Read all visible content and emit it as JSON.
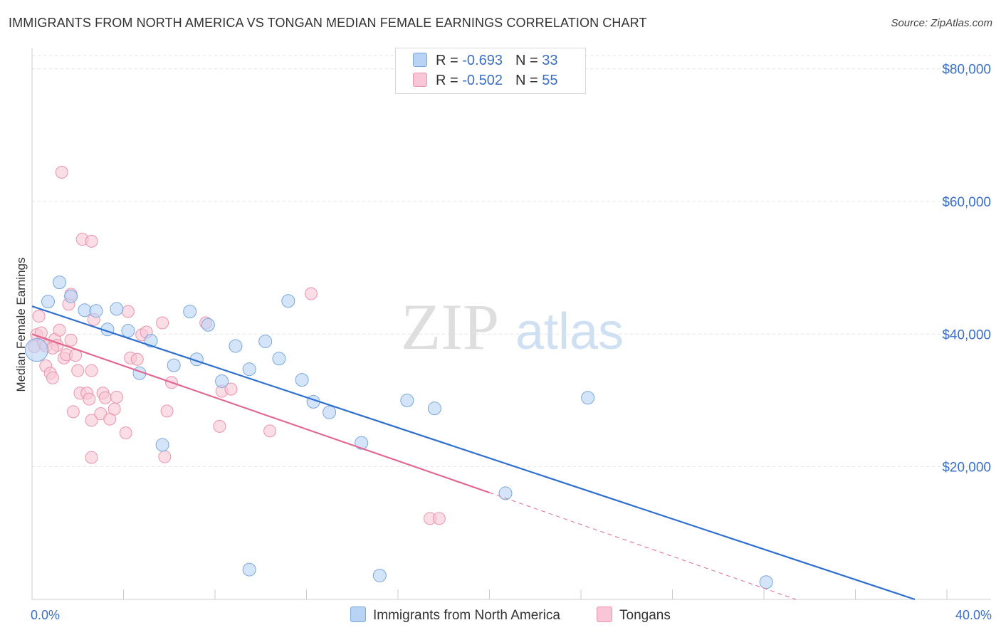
{
  "title": "IMMIGRANTS FROM NORTH AMERICA VS TONGAN MEDIAN FEMALE EARNINGS CORRELATION CHART",
  "source": "Source: ZipAtlas.com",
  "watermark": {
    "zip": "ZIP",
    "atlas": "atlas"
  },
  "legend_top": [
    {
      "r_label": "R = ",
      "r_value": "-0.693",
      "n_label": "N = ",
      "n_value": "33"
    },
    {
      "r_label": "R = ",
      "r_value": "-0.502",
      "n_label": "N = ",
      "n_value": "55"
    }
  ],
  "colors": {
    "blue_fill": "#b9d3f5",
    "blue_stroke": "#7aa6dd",
    "blue_line": "#2e6fd0",
    "pink_fill": "#f8c6d6",
    "pink_stroke": "#ec93b0",
    "pink_line": "#e26891",
    "axis_text": "#3a6fc4",
    "grid": "#e4e4e4"
  },
  "chart_data": {
    "type": "scatter",
    "title": "IMMIGRANTS FROM NORTH AMERICA VS TONGAN MEDIAN FEMALE EARNINGS CORRELATION CHART",
    "xlabel": "",
    "ylabel": "Median Female Earnings",
    "xlim": [
      0,
      40
    ],
    "ylim": [
      0,
      82000
    ],
    "x_tick_labels": [
      "0.0%",
      "40.0%"
    ],
    "y_ticks": [
      20000,
      40000,
      60000,
      80000
    ],
    "y_tick_labels": [
      "$20,000",
      "$40,000",
      "$60,000",
      "$80,000"
    ],
    "grid": true,
    "legend_position": "bottom",
    "series": [
      {
        "name": "Immigrants from North America",
        "color": "#b9d3f5",
        "trend": {
          "x": [
            0,
            38.6
          ],
          "y": [
            44200,
            0
          ],
          "dashed_after_x": null
        },
        "points": [
          {
            "x": 0.2,
            "y": 37600
          },
          {
            "x": 0.7,
            "y": 44900
          },
          {
            "x": 1.2,
            "y": 47800
          },
          {
            "x": 1.7,
            "y": 45700
          },
          {
            "x": 2.3,
            "y": 43600
          },
          {
            "x": 2.8,
            "y": 43500
          },
          {
            "x": 3.3,
            "y": 40700
          },
          {
            "x": 3.7,
            "y": 43800
          },
          {
            "x": 4.2,
            "y": 40500
          },
          {
            "x": 4.7,
            "y": 34100
          },
          {
            "x": 5.2,
            "y": 39000
          },
          {
            "x": 5.7,
            "y": 23300
          },
          {
            "x": 6.2,
            "y": 35300
          },
          {
            "x": 6.9,
            "y": 43400
          },
          {
            "x": 7.2,
            "y": 36200
          },
          {
            "x": 7.7,
            "y": 41400
          },
          {
            "x": 8.3,
            "y": 32900
          },
          {
            "x": 8.9,
            "y": 38200
          },
          {
            "x": 9.5,
            "y": 34700
          },
          {
            "x": 9.5,
            "y": 4500
          },
          {
            "x": 10.2,
            "y": 38900
          },
          {
            "x": 10.8,
            "y": 36300
          },
          {
            "x": 11.2,
            "y": 45000
          },
          {
            "x": 11.8,
            "y": 33100
          },
          {
            "x": 12.3,
            "y": 29800
          },
          {
            "x": 13.0,
            "y": 28200
          },
          {
            "x": 14.4,
            "y": 23600
          },
          {
            "x": 15.2,
            "y": 3600
          },
          {
            "x": 16.4,
            "y": 30000
          },
          {
            "x": 17.6,
            "y": 28800
          },
          {
            "x": 20.7,
            "y": 16000
          },
          {
            "x": 24.3,
            "y": 30400
          },
          {
            "x": 32.1,
            "y": 2600
          }
        ]
      },
      {
        "name": "Tongans",
        "color": "#f8c6d6",
        "trend": {
          "x": [
            0,
            20
          ],
          "y": [
            40000,
            16100
          ],
          "dashed_after_x": 20,
          "dash_to": [
            33.4,
            0
          ]
        },
        "points": [
          {
            "x": 0.1,
            "y": 38100
          },
          {
            "x": 0.2,
            "y": 39900
          },
          {
            "x": 0.3,
            "y": 42700
          },
          {
            "x": 0.4,
            "y": 40200
          },
          {
            "x": 0.5,
            "y": 38600
          },
          {
            "x": 0.6,
            "y": 38200
          },
          {
            "x": 0.6,
            "y": 35200
          },
          {
            "x": 0.8,
            "y": 34100
          },
          {
            "x": 0.9,
            "y": 33400
          },
          {
            "x": 1.0,
            "y": 39200
          },
          {
            "x": 1.1,
            "y": 38300
          },
          {
            "x": 1.2,
            "y": 40600
          },
          {
            "x": 1.3,
            "y": 64400
          },
          {
            "x": 1.4,
            "y": 36400
          },
          {
            "x": 1.5,
            "y": 36900
          },
          {
            "x": 1.6,
            "y": 44500
          },
          {
            "x": 1.7,
            "y": 46000
          },
          {
            "x": 1.7,
            "y": 39100
          },
          {
            "x": 1.8,
            "y": 28300
          },
          {
            "x": 1.9,
            "y": 36800
          },
          {
            "x": 2.0,
            "y": 34500
          },
          {
            "x": 2.1,
            "y": 31100
          },
          {
            "x": 2.2,
            "y": 54300
          },
          {
            "x": 2.4,
            "y": 31100
          },
          {
            "x": 2.5,
            "y": 30200
          },
          {
            "x": 2.6,
            "y": 34500
          },
          {
            "x": 2.6,
            "y": 27000
          },
          {
            "x": 2.6,
            "y": 21400
          },
          {
            "x": 2.6,
            "y": 54000
          },
          {
            "x": 2.7,
            "y": 42200
          },
          {
            "x": 3.0,
            "y": 28000
          },
          {
            "x": 3.1,
            "y": 31100
          },
          {
            "x": 3.2,
            "y": 30400
          },
          {
            "x": 3.4,
            "y": 27200
          },
          {
            "x": 3.6,
            "y": 28700
          },
          {
            "x": 3.7,
            "y": 30500
          },
          {
            "x": 4.1,
            "y": 25100
          },
          {
            "x": 4.2,
            "y": 43400
          },
          {
            "x": 4.3,
            "y": 36400
          },
          {
            "x": 4.6,
            "y": 36200
          },
          {
            "x": 4.8,
            "y": 39900
          },
          {
            "x": 5.0,
            "y": 40300
          },
          {
            "x": 5.7,
            "y": 41700
          },
          {
            "x": 5.9,
            "y": 28400
          },
          {
            "x": 5.8,
            "y": 21500
          },
          {
            "x": 6.1,
            "y": 32700
          },
          {
            "x": 7.6,
            "y": 41700
          },
          {
            "x": 8.2,
            "y": 26100
          },
          {
            "x": 8.3,
            "y": 31400
          },
          {
            "x": 8.7,
            "y": 31700
          },
          {
            "x": 10.4,
            "y": 25400
          },
          {
            "x": 12.2,
            "y": 46100
          },
          {
            "x": 17.4,
            "y": 12200
          },
          {
            "x": 17.8,
            "y": 12200
          },
          {
            "x": 0.9,
            "y": 37900
          }
        ]
      }
    ]
  }
}
